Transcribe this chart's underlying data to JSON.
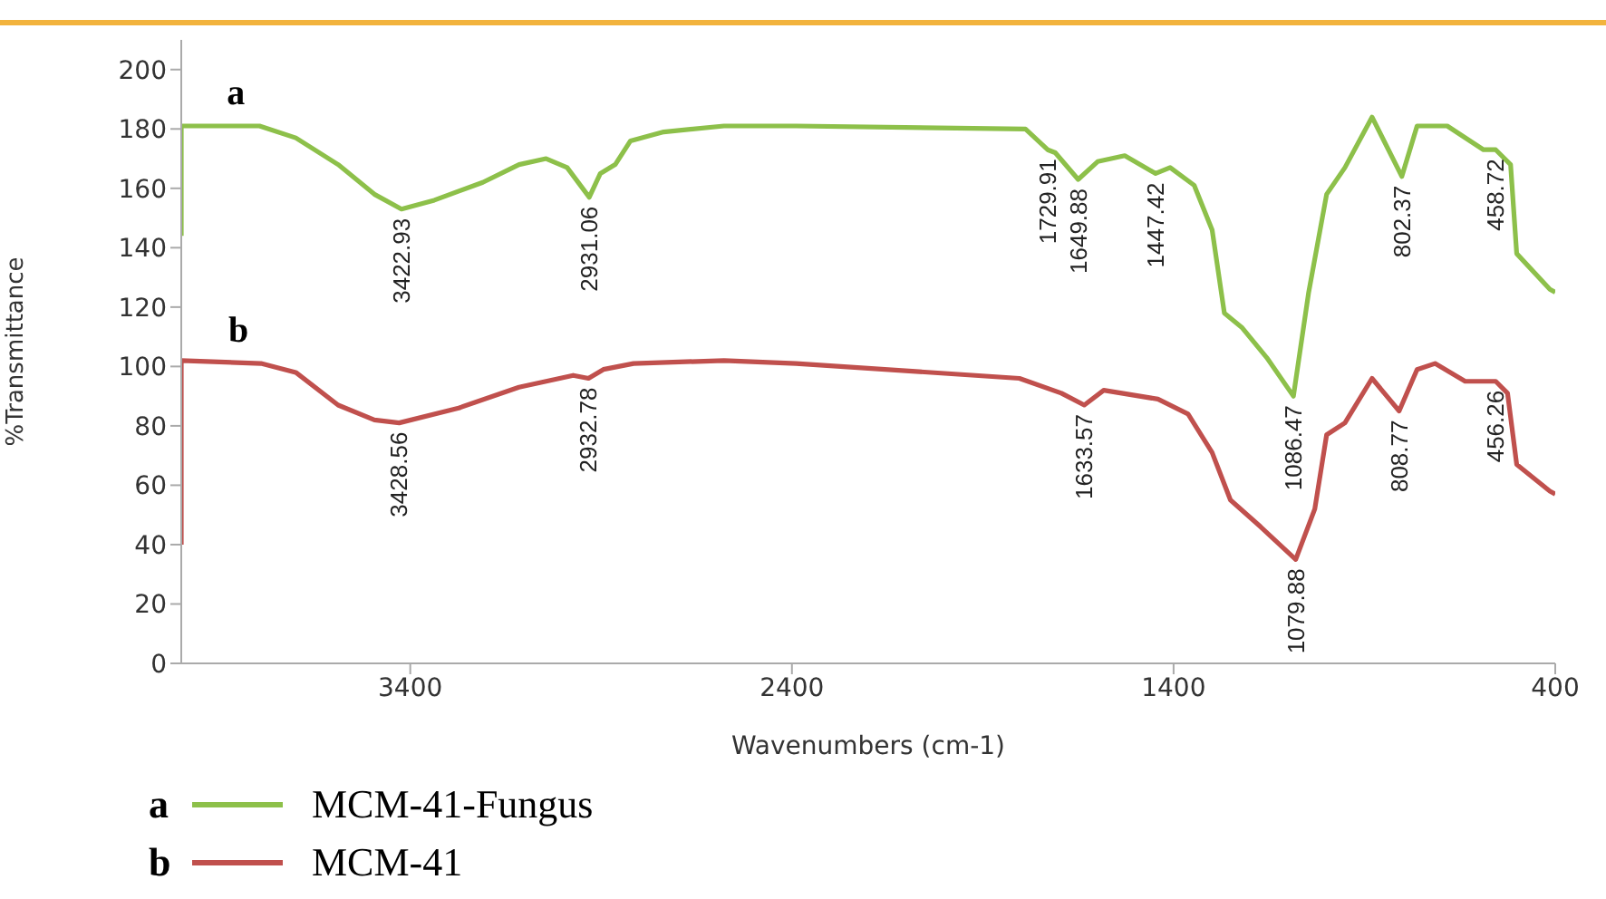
{
  "chart_data": {
    "type": "line",
    "xlabel": "Wavenumbers (cm-1)",
    "ylabel": "%Transmittance",
    "xlim": [
      4000,
      400
    ],
    "xticks": [
      3400,
      2400,
      1400,
      400
    ],
    "ylim": [
      0,
      210
    ],
    "yticks": [
      0,
      20,
      40,
      60,
      80,
      100,
      120,
      140,
      160,
      180,
      200
    ],
    "grid": false,
    "legend": "bottom left",
    "marker": "none",
    "line_style": "solid",
    "series": [
      {
        "name": "MCM-41-Fungus",
        "color": "#8dc04a",
        "x": [
          4000,
          4000,
          3795,
          3700,
          3589,
          3494,
          3423,
          3337,
          3210,
          3115,
          3044,
          2989,
          2931,
          2902,
          2863,
          2823,
          2736,
          2578,
          2389,
          1788,
          1730,
          1710,
          1650,
          1599,
          1528,
          1447,
          1409,
          1346,
          1299,
          1267,
          1220,
          1156,
          1086,
          1046,
          999,
          951,
          880,
          802,
          762,
          683,
          588,
          556,
          517,
          501,
          414,
          400
        ],
        "values": [
          144,
          181,
          181,
          177,
          168,
          158,
          153,
          156,
          162,
          168,
          170,
          167,
          157,
          165,
          168,
          176,
          179,
          181,
          181,
          180,
          173,
          172,
          163,
          169,
          171,
          165,
          167,
          161,
          146,
          118,
          113,
          103,
          90,
          125,
          158,
          167,
          184,
          164,
          181,
          181,
          173,
          173,
          168,
          138,
          126,
          125
        ]
      },
      {
        "name": "MCM-41",
        "color": "#c0504d",
        "x": [
          4000,
          4000,
          3791,
          3700,
          3589,
          3494,
          3429,
          3273,
          3115,
          2973,
          2933,
          2894,
          2815,
          2578,
          2389,
          1804,
          1694,
          1634,
          1583,
          1441,
          1362,
          1299,
          1251,
          1172,
          1080,
          1030,
          999,
          951,
          880,
          809,
          762,
          715,
          636,
          556,
          525,
          501,
          414,
          400
        ],
        "values": [
          40,
          102,
          101,
          98,
          87,
          82,
          81,
          86,
          93,
          97,
          96,
          99,
          101,
          102,
          101,
          96,
          91,
          87,
          92,
          89,
          84,
          71,
          55,
          46,
          35,
          52,
          77,
          81,
          96,
          85,
          99,
          101,
          95,
          95,
          91,
          67,
          58,
          57
        ]
      }
    ],
    "annotations": [
      "a",
      "b",
      {
        "text": "3422.93",
        "x": 3423,
        "y": 153
      },
      {
        "text": "2931.06",
        "x": 2931,
        "y": 157
      },
      {
        "text": "1729.91",
        "x": 1730,
        "y": 173
      },
      {
        "text": "1649.88",
        "x": 1650,
        "y": 163
      },
      {
        "text": "1447.42",
        "x": 1447,
        "y": 165
      },
      {
        "text": "1086.47",
        "x": 1086,
        "y": 90
      },
      {
        "text": "802.37",
        "x": 802,
        "y": 164
      },
      {
        "text": "458.72",
        "x": 556,
        "y": 173
      },
      {
        "text": "3428.56",
        "x": 3429,
        "y": 81
      },
      {
        "text": "2932.78",
        "x": 2933,
        "y": 96
      },
      {
        "text": "1633.57",
        "x": 1634,
        "y": 87
      },
      {
        "text": "1079.88",
        "x": 1080,
        "y": 35
      },
      {
        "text": "808.77",
        "x": 809,
        "y": 85
      },
      {
        "text": "456.26",
        "x": 556,
        "y": 95
      }
    ]
  }
}
